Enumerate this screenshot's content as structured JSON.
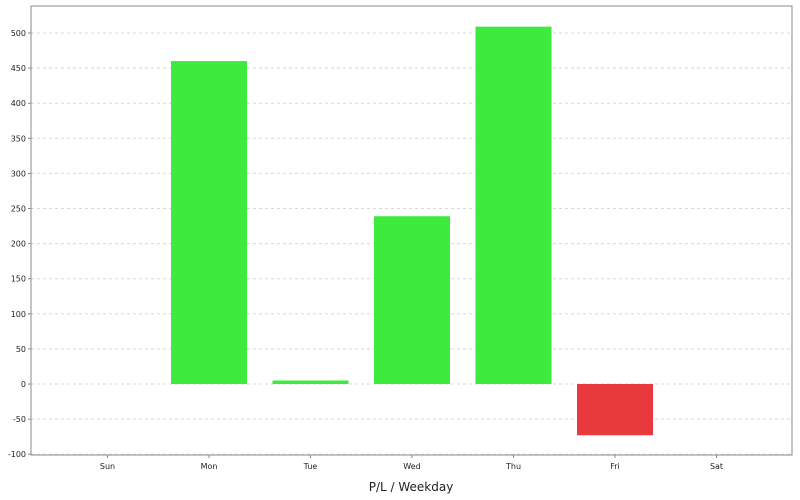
{
  "chart_data": {
    "type": "bar",
    "title": "",
    "xlabel": "P/L / Weekday",
    "ylabel": "",
    "categories": [
      "Sun",
      "Mon",
      "Tue",
      "Wed",
      "Thu",
      "Fri",
      "Sat"
    ],
    "values": [
      0,
      460,
      5,
      239,
      509,
      -73,
      0
    ],
    "ylim": [
      -100,
      525
    ],
    "yticks": [
      -100,
      -50,
      0,
      50,
      100,
      150,
      200,
      250,
      300,
      350,
      400,
      450,
      500
    ],
    "grid": true,
    "legend": "none",
    "colors": {
      "positive": "#3dea3d",
      "negative": "#e8393d",
      "grid": "#d8d8d8",
      "axis": "#888888"
    }
  }
}
